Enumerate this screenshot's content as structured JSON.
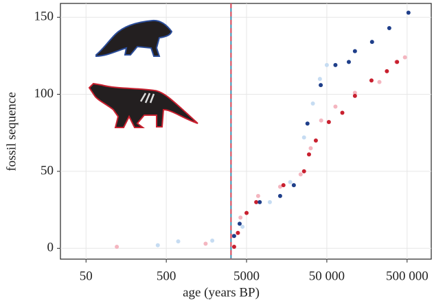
{
  "chart_data": {
    "type": "scatter",
    "xlabel": "age (years BP)",
    "ylabel": "fossil sequence",
    "log_x": true,
    "grid": true,
    "xlim": [
      24,
      1000000
    ],
    "ylim": [
      -7,
      159
    ],
    "xticks": [
      50,
      500,
      5000,
      {
        "value": 50000,
        "label": "50 000"
      },
      {
        "value": 500000,
        "label": "500 000"
      }
    ],
    "yticks": [
      0,
      50,
      100,
      150
    ],
    "vline": {
      "x": 3200,
      "colors": [
        "#3a8fb0",
        "#e04a5a"
      ]
    },
    "series": [
      {
        "color": "#f4b6c0",
        "x": [
          121,
          1545,
          3400,
          4200,
          6970,
          13100,
          23600,
          31500,
          42500,
          64000,
          112000,
          226000,
          368000,
          470000
        ],
        "values": [
          1,
          3,
          8,
          20,
          34,
          40,
          48,
          65,
          83,
          92,
          101,
          108,
          121,
          124
        ]
      },
      {
        "color": "#c8202f",
        "x": [
          3500,
          3900,
          5000,
          6600,
          14400,
          26000,
          30000,
          36500,
          53000,
          78000,
          112000,
          180000,
          280000,
          375000
        ],
        "values": [
          1,
          10,
          23,
          30,
          41,
          50,
          61,
          70,
          82,
          88,
          99,
          109,
          115,
          121
        ]
      },
      {
        "color": "#c6dcf2",
        "x": [
          392,
          704,
          1870,
          4450,
          9750,
          17500,
          26000,
          33500,
          41000,
          50000
        ],
        "values": [
          2,
          4.5,
          5,
          14,
          30,
          43,
          72,
          94,
          110,
          119
        ]
      },
      {
        "color": "#1f3f8a",
        "x": [
          3500,
          4100,
          7300,
          13100,
          19400,
          28700,
          42000,
          64000,
          94000,
          112000,
          183000,
          300000,
          520000
        ],
        "values": [
          8,
          16,
          30,
          34,
          41,
          81,
          106,
          119,
          121,
          128,
          134,
          143,
          153
        ]
      }
    ]
  }
}
